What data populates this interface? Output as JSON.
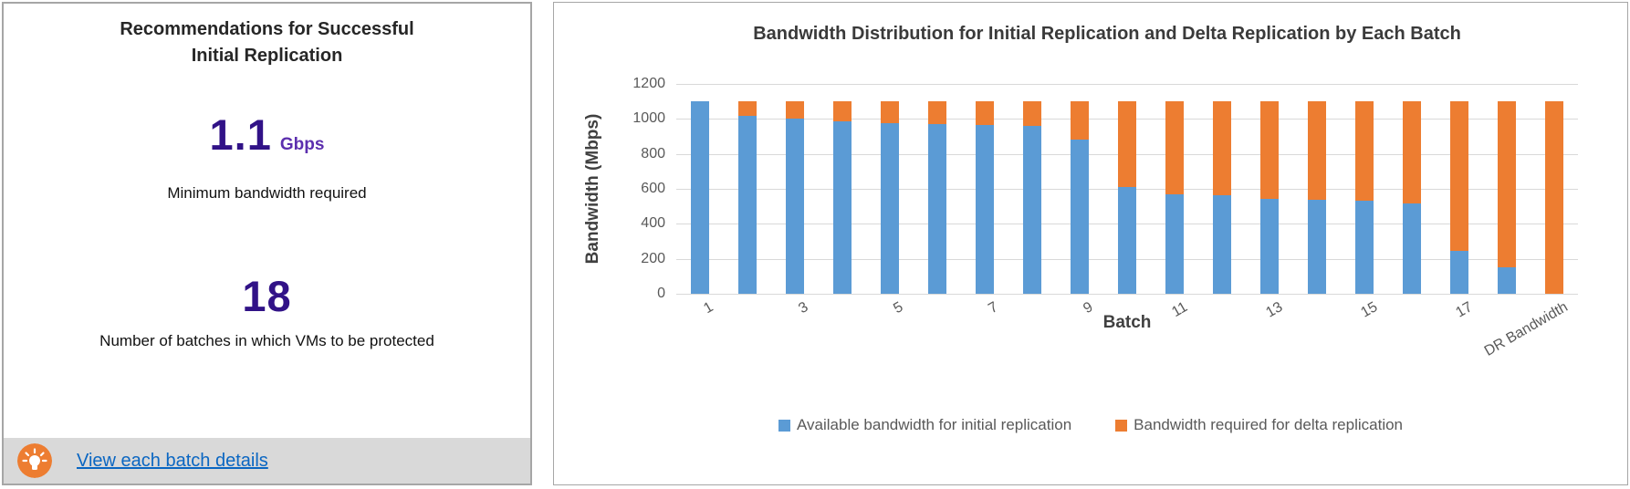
{
  "left_panel": {
    "title_line1": "Recommendations for Successful",
    "title_line2": "Initial Replication",
    "stat_bandwidth": {
      "value": "1.1",
      "unit": "Gbps",
      "label": "Minimum bandwidth required"
    },
    "stat_batches": {
      "value": "18",
      "label": "Number of batches in which VMs to be protected"
    },
    "footer": {
      "icon": "lightbulb-icon",
      "icon_color": "#ed7d31",
      "link_label": "View each batch details",
      "link_color": "#0a66c2"
    },
    "accent_color": "#311287"
  },
  "chart_data": {
    "type": "bar",
    "stacked": true,
    "title": "Bandwidth Distribution for Initial Replication and Delta Replication by Each Batch",
    "xlabel": "Batch",
    "ylabel": "Bandwidth (Mbps)",
    "ylim": [
      0,
      1200
    ],
    "ytick_step": 200,
    "ytick_labels": [
      "0",
      "200",
      "400",
      "600",
      "800",
      "1000",
      "1200"
    ],
    "grid": true,
    "legend_position": "bottom",
    "categories": [
      "1",
      "2",
      "3",
      "4",
      "5",
      "6",
      "7",
      "8",
      "9",
      "10",
      "11",
      "12",
      "13",
      "14",
      "15",
      "16",
      "17",
      "18",
      "DR Bandwidth"
    ],
    "x_tick_labels": [
      "1",
      "",
      "3",
      "",
      "5",
      "",
      "7",
      "",
      "9",
      "",
      "11",
      "",
      "13",
      "",
      "15",
      "",
      "17",
      "",
      "DR Bandwidth"
    ],
    "series": [
      {
        "name": "Available bandwidth for initial replication",
        "color": "#5b9bd5",
        "values": [
          1100,
          1020,
          1000,
          985,
          975,
          970,
          965,
          960,
          880,
          610,
          570,
          565,
          545,
          540,
          530,
          515,
          245,
          150,
          0
        ]
      },
      {
        "name": "Bandwidth required for delta replication",
        "color": "#ed7d31",
        "values": [
          0,
          80,
          100,
          115,
          125,
          130,
          135,
          140,
          220,
          490,
          530,
          535,
          555,
          560,
          570,
          585,
          855,
          950,
          1100
        ]
      }
    ],
    "gridline_color": "#d9d9d9",
    "tick_color": "#595959"
  }
}
